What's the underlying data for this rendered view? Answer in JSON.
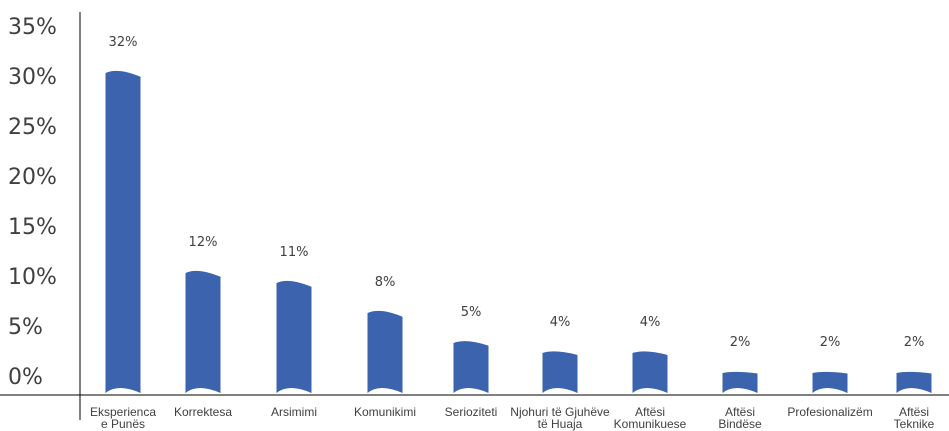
{
  "chart_data": {
    "type": "bar",
    "title": "",
    "xlabel": "",
    "ylabel": "",
    "ylim": [
      0,
      35
    ],
    "y_ticks": [
      "0%",
      "5%",
      "10%",
      "15%",
      "20%",
      "25%",
      "30%",
      "35%"
    ],
    "y_tick_values": [
      0,
      5,
      10,
      15,
      20,
      25,
      30,
      35
    ],
    "categories": [
      [
        "Eksperienca",
        "e Punës"
      ],
      [
        "Korrektesa"
      ],
      [
        "Arsimimi"
      ],
      [
        "Komunikimi"
      ],
      [
        "Seriozitetі"
      ],
      [
        "Njohuri të Gjuhëve",
        "të Huaja"
      ],
      [
        "Aftësi",
        "Komunikuese"
      ],
      [
        "Aftësi",
        "Bindëse"
      ],
      [
        "Profesionalizëm"
      ],
      [
        "Aftësi",
        "Teknike"
      ]
    ],
    "values": [
      32,
      12,
      11,
      8,
      5,
      4,
      4,
      2,
      2,
      2
    ],
    "value_labels": [
      "32%",
      "12%",
      "11%",
      "8%",
      "5%",
      "4%",
      "4%",
      "2%",
      "2%",
      "2%"
    ],
    "bar_color": "#3b63ae",
    "grid": false,
    "legend": "none"
  }
}
